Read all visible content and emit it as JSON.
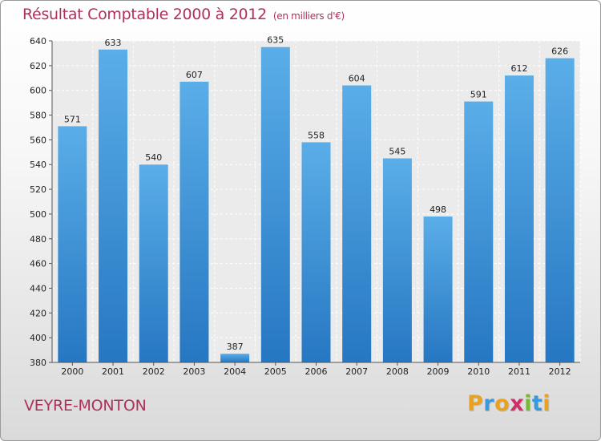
{
  "chart_data": {
    "type": "bar",
    "title": "Résultat Comptable 2000 à 2012",
    "subtitle": "(en milliers d'€)",
    "xlabel": "",
    "ylabel": "",
    "categories": [
      "2000",
      "2001",
      "2002",
      "2003",
      "2004",
      "2005",
      "2006",
      "2007",
      "2008",
      "2009",
      "2010",
      "2011",
      "2012"
    ],
    "values": [
      571,
      633,
      540,
      607,
      387,
      635,
      558,
      604,
      545,
      498,
      591,
      612,
      626
    ],
    "ylim": [
      380,
      640
    ],
    "yticks": [
      380,
      400,
      420,
      440,
      460,
      480,
      500,
      520,
      540,
      560,
      580,
      600,
      620,
      640
    ],
    "grid": true,
    "bar_color": "#3d8fd6"
  },
  "commune": "VEYRE-MONTON",
  "logo": {
    "letters": [
      "P",
      "r",
      "o",
      "x",
      "i",
      "t",
      "i"
    ],
    "colors": [
      "#e8a21e",
      "#3a9ad9",
      "#e8a21e",
      "#d02d6a",
      "#7ab83a",
      "#3a9ad9",
      "#e8a21e"
    ]
  }
}
